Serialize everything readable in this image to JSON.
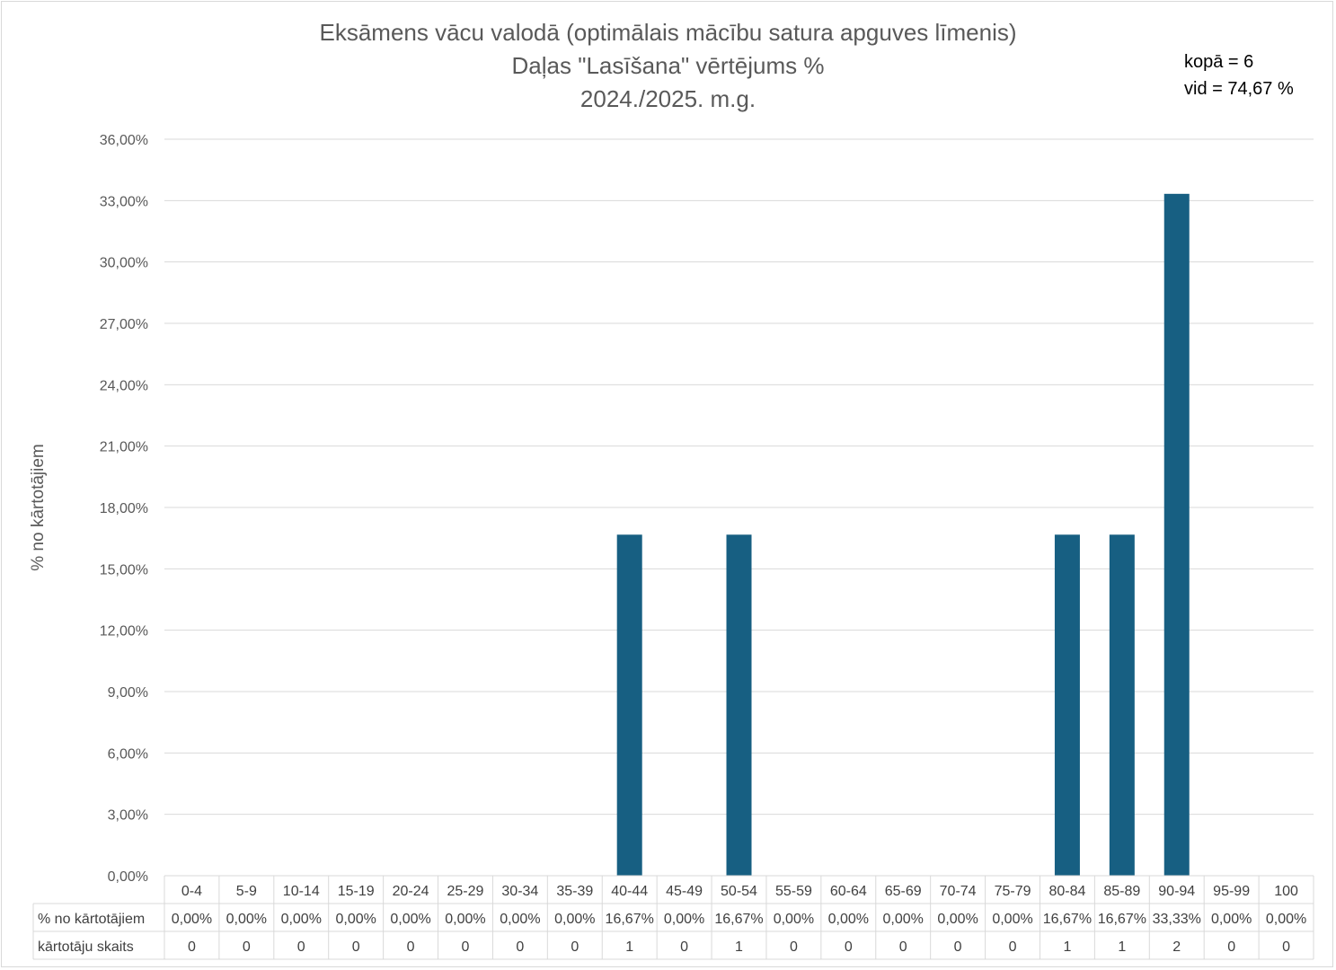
{
  "chart_data": {
    "type": "bar",
    "title_lines": [
      "Eksāmens vācu valodā (optimālais mācību satura apguves līmenis)",
      "Daļas \"Lasīšana\" vērtējums %",
      "2024./2025. m.g."
    ],
    "ylabel": "% no kārtotājiem",
    "ylim": [
      0,
      36
    ],
    "yticks": [
      "0,00%",
      "3,00%",
      "6,00%",
      "9,00%",
      "12,00%",
      "15,00%",
      "18,00%",
      "21,00%",
      "24,00%",
      "27,00%",
      "30,00%",
      "33,00%",
      "36,00%"
    ],
    "grid": true,
    "bar_color": "#175f82",
    "categories": [
      "0-4",
      "5-9",
      "10-14",
      "15-19",
      "20-24",
      "25-29",
      "30-34",
      "35-39",
      "40-44",
      "45-49",
      "50-54",
      "55-59",
      "60-64",
      "65-69",
      "70-74",
      "75-79",
      "80-84",
      "85-89",
      "90-94",
      "95-99",
      "100"
    ],
    "series": [
      {
        "name": "% no kārtotājiem",
        "values": [
          0,
          0,
          0,
          0,
          0,
          0,
          0,
          0,
          16.67,
          0,
          16.67,
          0,
          0,
          0,
          0,
          0,
          16.67,
          16.67,
          33.33,
          0,
          0
        ],
        "labels": [
          "0,00%",
          "0,00%",
          "0,00%",
          "0,00%",
          "0,00%",
          "0,00%",
          "0,00%",
          "0,00%",
          "16,67%",
          "0,00%",
          "16,67%",
          "0,00%",
          "0,00%",
          "0,00%",
          "0,00%",
          "0,00%",
          "16,67%",
          "16,67%",
          "33,33%",
          "0,00%",
          "0,00%"
        ]
      }
    ],
    "table_rows": [
      {
        "header": "% no kārtotājiem",
        "values": [
          "0,00%",
          "0,00%",
          "0,00%",
          "0,00%",
          "0,00%",
          "0,00%",
          "0,00%",
          "0,00%",
          "16,67%",
          "0,00%",
          "16,67%",
          "0,00%",
          "0,00%",
          "0,00%",
          "0,00%",
          "0,00%",
          "16,67%",
          "16,67%",
          "33,33%",
          "0,00%",
          "0,00%"
        ]
      },
      {
        "header": "kārtotāju skaits",
        "values": [
          "0",
          "0",
          "0",
          "0",
          "0",
          "0",
          "0",
          "0",
          "1",
          "0",
          "1",
          "0",
          "0",
          "0",
          "0",
          "0",
          "1",
          "1",
          "2",
          "0",
          "0"
        ]
      }
    ],
    "annotations": [
      "kopā = 6",
      "vid = 74,67 %"
    ]
  }
}
